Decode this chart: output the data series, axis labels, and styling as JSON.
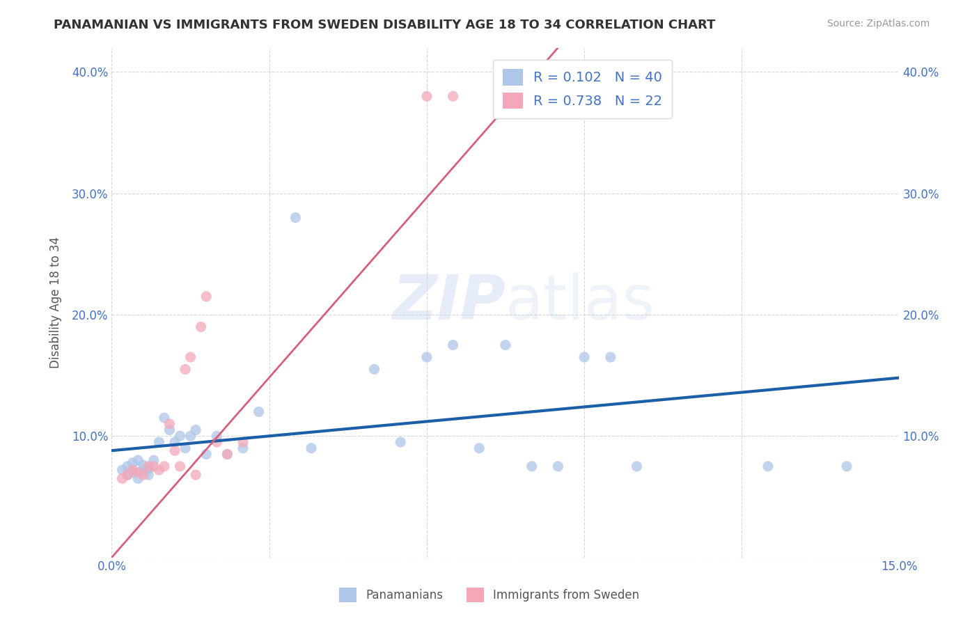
{
  "title": "PANAMANIAN VS IMMIGRANTS FROM SWEDEN DISABILITY AGE 18 TO 34 CORRELATION CHART",
  "source": "Source: ZipAtlas.com",
  "ylabel": "Disability Age 18 to 34",
  "xlim": [
    0.0,
    0.15
  ],
  "ylim": [
    0.0,
    0.42
  ],
  "legend_entries": [
    {
      "label": "Panamanians",
      "color": "#aec6e8",
      "R": "0.102",
      "N": "40"
    },
    {
      "label": "Immigrants from Sweden",
      "color": "#f4a7b9",
      "R": "0.738",
      "N": "22"
    }
  ],
  "blue_scatter_x": [
    0.002,
    0.003,
    0.003,
    0.004,
    0.004,
    0.005,
    0.005,
    0.006,
    0.006,
    0.007,
    0.007,
    0.008,
    0.009,
    0.01,
    0.011,
    0.012,
    0.013,
    0.014,
    0.015,
    0.016,
    0.018,
    0.02,
    0.022,
    0.025,
    0.028,
    0.035,
    0.038,
    0.05,
    0.055,
    0.06,
    0.065,
    0.07,
    0.075,
    0.08,
    0.085,
    0.09,
    0.095,
    0.1,
    0.125,
    0.14
  ],
  "blue_scatter_y": [
    0.072,
    0.068,
    0.075,
    0.07,
    0.078,
    0.065,
    0.08,
    0.072,
    0.076,
    0.068,
    0.073,
    0.08,
    0.095,
    0.115,
    0.105,
    0.095,
    0.1,
    0.09,
    0.1,
    0.105,
    0.085,
    0.1,
    0.085,
    0.09,
    0.12,
    0.28,
    0.09,
    0.155,
    0.095,
    0.165,
    0.175,
    0.09,
    0.175,
    0.075,
    0.075,
    0.165,
    0.165,
    0.075,
    0.075,
    0.075
  ],
  "pink_scatter_x": [
    0.002,
    0.003,
    0.004,
    0.005,
    0.006,
    0.007,
    0.008,
    0.009,
    0.01,
    0.011,
    0.012,
    0.013,
    0.014,
    0.015,
    0.016,
    0.017,
    0.018,
    0.02,
    0.022,
    0.025,
    0.06,
    0.065
  ],
  "pink_scatter_y": [
    0.065,
    0.068,
    0.072,
    0.07,
    0.068,
    0.075,
    0.075,
    0.072,
    0.075,
    0.11,
    0.088,
    0.075,
    0.155,
    0.165,
    0.068,
    0.19,
    0.215,
    0.095,
    0.085,
    0.095,
    0.38,
    0.38
  ],
  "blue_line_x": [
    0.0,
    0.15
  ],
  "blue_line_y": [
    0.088,
    0.148
  ],
  "pink_line_x": [
    0.0,
    0.085
  ],
  "pink_line_y": [
    0.0,
    0.42
  ],
  "watermark_zip": "ZIP",
  "watermark_atlas": "atlas",
  "scatter_size": 120,
  "blue_color": "#aec6e8",
  "pink_color": "#f4a7b9",
  "blue_line_color": "#1a5fa8",
  "pink_line_color": "#d4607a",
  "axis_color": "#4472c4",
  "grid_color": "#cccccc",
  "background_color": "#ffffff"
}
